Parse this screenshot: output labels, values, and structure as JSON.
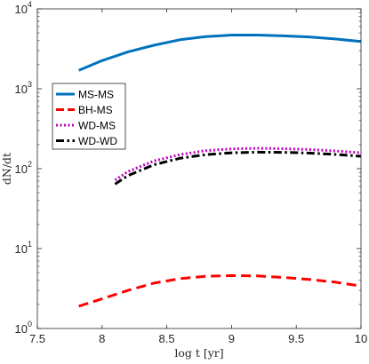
{
  "chart_data": {
    "type": "line",
    "xlabel": "log t [yr]",
    "ylabel": "dN/dt",
    "xlim": [
      7.5,
      10
    ],
    "ylim": [
      1,
      10000
    ],
    "yscale": "log",
    "grid": false,
    "legend_position": "left, upper-middle",
    "x_ticks": [
      "7.5",
      "8",
      "8.5",
      "9",
      "9.5",
      "10"
    ],
    "y_ticks": [
      {
        "value": 1,
        "base": "10",
        "exp": "0"
      },
      {
        "value": 10,
        "base": "10",
        "exp": "1"
      },
      {
        "value": 100,
        "base": "10",
        "exp": "2"
      },
      {
        "value": 1000,
        "base": "10",
        "exp": "3"
      },
      {
        "value": 10000,
        "base": "10",
        "exp": "4"
      }
    ],
    "series": [
      {
        "name": "MS-MS",
        "color": "#0072bd",
        "style": "solid",
        "x": [
          7.82,
          8.0,
          8.2,
          8.4,
          8.6,
          8.8,
          9.0,
          9.2,
          9.4,
          9.6,
          9.8,
          10.0
        ],
        "y": [
          1700,
          2250,
          2900,
          3500,
          4100,
          4500,
          4700,
          4700,
          4600,
          4450,
          4200,
          3900
        ]
      },
      {
        "name": "BH-MS",
        "color": "#ff0000",
        "style": "dashed",
        "x": [
          7.82,
          8.0,
          8.2,
          8.4,
          8.6,
          8.8,
          9.0,
          9.2,
          9.4,
          9.6,
          9.8,
          10.0
        ],
        "y": [
          1.9,
          2.35,
          3.0,
          3.7,
          4.2,
          4.5,
          4.6,
          4.55,
          4.35,
          4.1,
          3.8,
          3.4
        ]
      },
      {
        "name": "WD-MS",
        "color": "#c000c0",
        "style": "dotted",
        "x": [
          8.1,
          8.2,
          8.4,
          8.6,
          8.8,
          9.0,
          9.2,
          9.4,
          9.6,
          9.8,
          10.0
        ],
        "y": [
          72,
          92,
          125,
          150,
          168,
          177,
          180,
          178,
          174,
          167,
          158
        ]
      },
      {
        "name": "WD-WD",
        "color": "#000000",
        "style": "dashdot",
        "x": [
          8.1,
          8.2,
          8.4,
          8.6,
          8.8,
          9.0,
          9.2,
          9.4,
          9.6,
          9.8,
          10.0
        ],
        "y": [
          64,
          82,
          112,
          135,
          150,
          158,
          161,
          160,
          157,
          151,
          143
        ]
      }
    ]
  }
}
